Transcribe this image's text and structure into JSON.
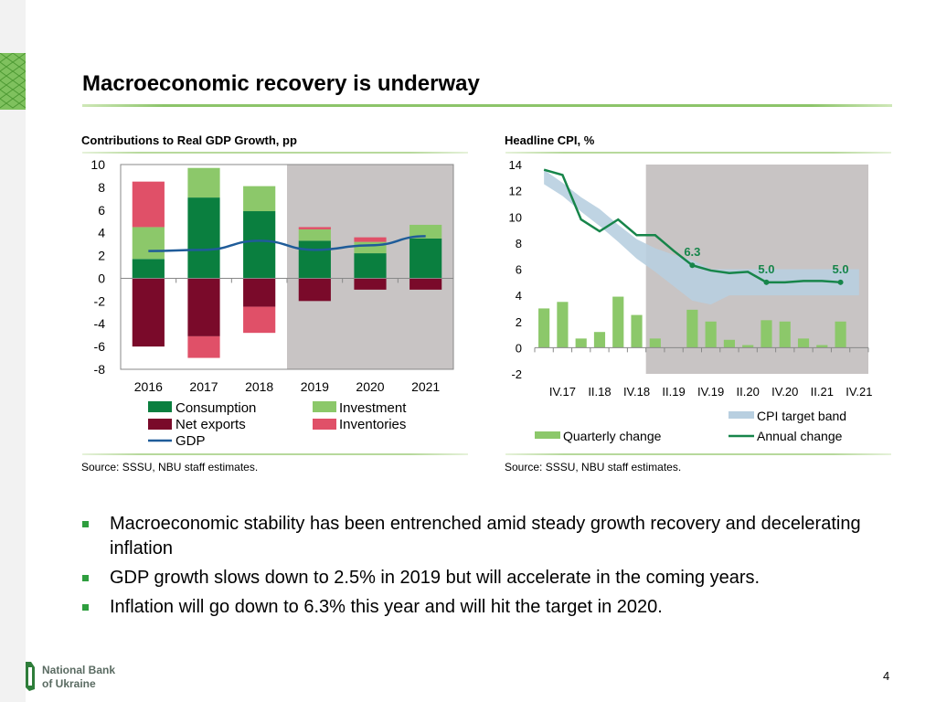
{
  "slide": {
    "title": "Macroeconomic recovery is underway",
    "page_number": "4",
    "logo_text_line1": "National Bank",
    "logo_text_line2": "of Ukraine",
    "bullets": [
      "Macroeconomic stability has been entrenched amid steady growth recovery and decelerating inflation",
      "GDP growth slows down to 2.5% in 2019 but will accelerate in the coming years.",
      "Inflation will go down to 6.3% this year and will hit the target in 2020."
    ]
  },
  "colors": {
    "consumption": "#0a7f3f",
    "investment": "#8cc86a",
    "net_exports": "#7a0a2a",
    "inventories": "#e05068",
    "gdp": "#1f5c99",
    "forecast_shade": "#c8c4c4",
    "cpi_band": "#b8cfe0",
    "cpi_line": "#17854a",
    "quarterly": "#8cc86a",
    "accent_green": "#2e9e3e"
  },
  "chart_data": [
    {
      "type": "bar",
      "title": "Contributions to Real GDP Growth, pp",
      "source": "Source: SSSU, NBU staff estimates.",
      "categories": [
        "2016",
        "2017",
        "2018",
        "2019",
        "2020",
        "2021"
      ],
      "ylim": [
        -8,
        10
      ],
      "yticks": [
        10,
        8,
        6,
        4,
        2,
        0,
        -2,
        -4,
        -6,
        -8
      ],
      "forecast_from_index": 3,
      "series": [
        {
          "name": "Consumption",
          "key": "consumption",
          "kind": "bar",
          "values": [
            1.7,
            7.1,
            5.9,
            3.3,
            2.2,
            3.5
          ]
        },
        {
          "name": "Investment",
          "key": "investment",
          "kind": "bar",
          "values": [
            2.8,
            2.6,
            2.2,
            1.0,
            1.0,
            1.2
          ]
        },
        {
          "name": "Net exports",
          "key": "net_exports",
          "kind": "bar",
          "values": [
            -6.0,
            -5.1,
            -2.5,
            -2.0,
            -1.0,
            -1.0
          ]
        },
        {
          "name": "Inventories",
          "key": "inventories",
          "kind": "bar",
          "values": [
            4.0,
            -1.9,
            -2.3,
            0.2,
            0.4,
            0.0
          ]
        },
        {
          "name": "GDP",
          "key": "gdp",
          "kind": "line",
          "values": [
            2.4,
            2.5,
            3.3,
            2.5,
            2.9,
            3.7
          ]
        }
      ],
      "legend": [
        "Consumption",
        "Investment",
        "Net exports",
        "Inventories",
        "GDP"
      ]
    },
    {
      "type": "line",
      "title": "Headline CPI, %",
      "source": "Source: SSSU, NBU staff estimates.",
      "ylim": [
        -2,
        14
      ],
      "yticks": [
        14,
        12,
        10,
        8,
        6,
        4,
        2,
        0,
        -2
      ],
      "xtick_labels": [
        "IV.17",
        "II.18",
        "IV.18",
        "II.19",
        "IV.19",
        "II.20",
        "IV.20",
        "II.21",
        "IV.21"
      ],
      "quarters": [
        "III.17",
        "IV.17",
        "I.18",
        "II.18",
        "III.18",
        "IV.18",
        "I.19",
        "II.19",
        "III.19",
        "IV.19",
        "I.20",
        "II.20",
        "III.20",
        "IV.20",
        "I.21",
        "II.21",
        "III.21",
        "IV.21"
      ],
      "forecast_from_index": 6,
      "series": [
        {
          "name": "Quarterly change",
          "key": "quarterly",
          "kind": "bar",
          "values": [
            3.0,
            3.5,
            0.7,
            1.2,
            3.9,
            2.5,
            0.7,
            null,
            2.9,
            2.0,
            0.6,
            0.2,
            2.1,
            2.0,
            0.7,
            0.2,
            2.0,
            null
          ]
        },
        {
          "name": "Annual change",
          "key": "annual",
          "kind": "line",
          "values": [
            13.6,
            13.2,
            9.8,
            8.9,
            9.8,
            8.6,
            8.6,
            7.4,
            6.3,
            5.9,
            5.7,
            5.8,
            5.0,
            5.0,
            5.1,
            5.1,
            5.0
          ]
        },
        {
          "name": "CPI target band",
          "key": "band",
          "kind": "band",
          "lower": [
            12.5,
            11.6,
            10.4,
            9.3,
            8.1,
            6.8,
            5.8,
            4.7,
            3.6,
            3.3,
            4.0,
            4.0,
            4.0,
            4.0,
            4.0,
            4.0,
            4.0,
            4.0
          ],
          "upper": [
            13.6,
            12.6,
            11.5,
            10.6,
            9.4,
            8.3,
            7.6,
            7.1,
            6.7,
            6.0,
            6.0,
            6.0,
            6.0,
            6.0,
            6.0,
            6.0,
            6.0,
            6.0
          ]
        }
      ],
      "annotations": [
        {
          "label": "6.3",
          "index": 8,
          "value": 6.3
        },
        {
          "label": "5.0",
          "index": 12,
          "value": 5.0
        },
        {
          "label": "5.0",
          "index": 16,
          "value": 5.0
        }
      ],
      "legend": [
        "CPI target band",
        "Quarterly change",
        "Annual change"
      ]
    }
  ]
}
